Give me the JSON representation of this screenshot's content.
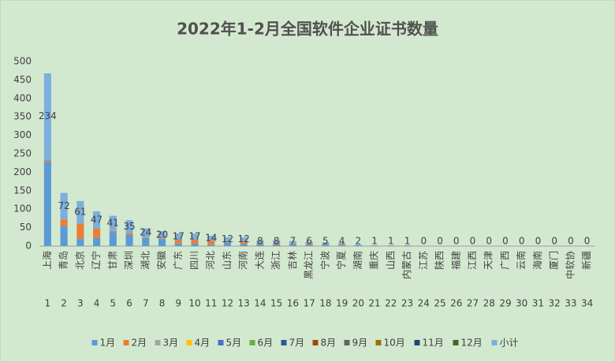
{
  "chart_data": {
    "type": "stacked_bar",
    "title": "2022年1-2月全国软件企业证书数量",
    "categories": [
      "上海",
      "青岛",
      "北京",
      "辽宁",
      "甘肃",
      "深圳",
      "湖北",
      "安徽",
      "广东",
      "四川",
      "河北",
      "山东",
      "河南",
      "大连",
      "浙江",
      "吉林",
      "黑龙江",
      "宁波",
      "宁夏",
      "湖南",
      "重庆",
      "山西",
      "内蒙古",
      "江苏",
      "陕西",
      "福建",
      "江西",
      "天津",
      "广西",
      "云南",
      "海南",
      "厦门",
      "中软协",
      "新疆"
    ],
    "category_numbers": [
      1,
      2,
      3,
      4,
      5,
      6,
      7,
      8,
      9,
      10,
      11,
      12,
      13,
      14,
      15,
      16,
      17,
      18,
      19,
      20,
      21,
      22,
      23,
      24,
      25,
      26,
      27,
      28,
      29,
      30,
      31,
      32,
      33,
      34
    ],
    "series": [
      {
        "name": "1月",
        "color": "#5b9bd5",
        "values": [
          230,
          54,
          20,
          22,
          38,
          30,
          22,
          18,
          8,
          7,
          4,
          10,
          6,
          5,
          4,
          5,
          3,
          4,
          2,
          2,
          1,
          1,
          1,
          0,
          0,
          0,
          0,
          0,
          0,
          0,
          0,
          0,
          0,
          0
        ]
      },
      {
        "name": "2月",
        "color": "#ed7d31",
        "values": [
          4,
          18,
          41,
          25,
          3,
          5,
          2,
          2,
          9,
          10,
          10,
          2,
          6,
          3,
          4,
          2,
          3,
          1,
          2,
          0,
          0,
          0,
          0,
          0,
          0,
          0,
          0,
          0,
          0,
          0,
          0,
          0,
          0,
          0
        ]
      },
      {
        "name": "3月",
        "color": "#a5a5a5",
        "values": [
          0,
          0,
          0,
          0,
          0,
          0,
          0,
          0,
          0,
          0,
          0,
          0,
          0,
          0,
          0,
          0,
          0,
          0,
          0,
          0,
          0,
          0,
          0,
          0,
          0,
          0,
          0,
          0,
          0,
          0,
          0,
          0,
          0,
          0
        ]
      },
      {
        "name": "4月",
        "color": "#ffc000",
        "values": [
          0,
          0,
          0,
          0,
          0,
          0,
          0,
          0,
          0,
          0,
          0,
          0,
          0,
          0,
          0,
          0,
          0,
          0,
          0,
          0,
          0,
          0,
          0,
          0,
          0,
          0,
          0,
          0,
          0,
          0,
          0,
          0,
          0,
          0
        ]
      },
      {
        "name": "5月",
        "color": "#4472c4",
        "values": [
          0,
          0,
          0,
          0,
          0,
          0,
          0,
          0,
          0,
          0,
          0,
          0,
          0,
          0,
          0,
          0,
          0,
          0,
          0,
          0,
          0,
          0,
          0,
          0,
          0,
          0,
          0,
          0,
          0,
          0,
          0,
          0,
          0,
          0
        ]
      },
      {
        "name": "6月",
        "color": "#70ad47",
        "values": [
          0,
          0,
          0,
          0,
          0,
          0,
          0,
          0,
          0,
          0,
          0,
          0,
          0,
          0,
          0,
          0,
          0,
          0,
          0,
          0,
          0,
          0,
          0,
          0,
          0,
          0,
          0,
          0,
          0,
          0,
          0,
          0,
          0,
          0
        ]
      },
      {
        "name": "7月",
        "color": "#255e91",
        "values": [
          0,
          0,
          0,
          0,
          0,
          0,
          0,
          0,
          0,
          0,
          0,
          0,
          0,
          0,
          0,
          0,
          0,
          0,
          0,
          0,
          0,
          0,
          0,
          0,
          0,
          0,
          0,
          0,
          0,
          0,
          0,
          0,
          0,
          0
        ]
      },
      {
        "name": "8月",
        "color": "#9e480e",
        "values": [
          0,
          0,
          0,
          0,
          0,
          0,
          0,
          0,
          0,
          0,
          0,
          0,
          0,
          0,
          0,
          0,
          0,
          0,
          0,
          0,
          0,
          0,
          0,
          0,
          0,
          0,
          0,
          0,
          0,
          0,
          0,
          0,
          0,
          0
        ]
      },
      {
        "name": "9月",
        "color": "#636363",
        "values": [
          0,
          0,
          0,
          0,
          0,
          0,
          0,
          0,
          0,
          0,
          0,
          0,
          0,
          0,
          0,
          0,
          0,
          0,
          0,
          0,
          0,
          0,
          0,
          0,
          0,
          0,
          0,
          0,
          0,
          0,
          0,
          0,
          0,
          0
        ]
      },
      {
        "name": "10月",
        "color": "#997300",
        "values": [
          0,
          0,
          0,
          0,
          0,
          0,
          0,
          0,
          0,
          0,
          0,
          0,
          0,
          0,
          0,
          0,
          0,
          0,
          0,
          0,
          0,
          0,
          0,
          0,
          0,
          0,
          0,
          0,
          0,
          0,
          0,
          0,
          0,
          0
        ]
      },
      {
        "name": "11月",
        "color": "#264478",
        "values": [
          0,
          0,
          0,
          0,
          0,
          0,
          0,
          0,
          0,
          0,
          0,
          0,
          0,
          0,
          0,
          0,
          0,
          0,
          0,
          0,
          0,
          0,
          0,
          0,
          0,
          0,
          0,
          0,
          0,
          0,
          0,
          0,
          0,
          0
        ]
      },
      {
        "name": "12月",
        "color": "#43682b",
        "values": [
          0,
          0,
          0,
          0,
          0,
          0,
          0,
          0,
          0,
          0,
          0,
          0,
          0,
          0,
          0,
          0,
          0,
          0,
          0,
          0,
          0,
          0,
          0,
          0,
          0,
          0,
          0,
          0,
          0,
          0,
          0,
          0,
          0,
          0
        ]
      },
      {
        "name": "小计",
        "color": "#7cafdd",
        "data_labels": true,
        "values": [
          234,
          72,
          61,
          47,
          41,
          35,
          24,
          20,
          17,
          17,
          14,
          12,
          12,
          8,
          8,
          7,
          6,
          5,
          4,
          2,
          1,
          1,
          1,
          0,
          0,
          0,
          0,
          0,
          0,
          0,
          0,
          0,
          0,
          0
        ]
      }
    ],
    "ylim": [
      0,
      500
    ],
    "yticks": [
      0,
      50,
      100,
      150,
      200,
      250,
      300,
      350,
      400,
      450,
      500
    ],
    "grid": false,
    "legend": "bottom"
  }
}
